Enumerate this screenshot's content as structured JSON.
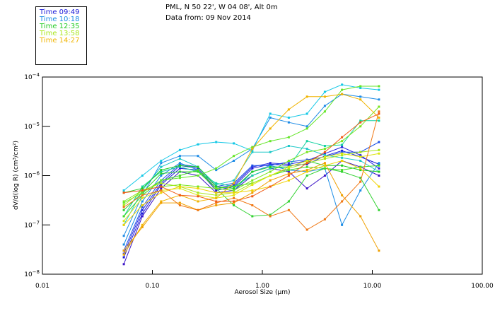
{
  "header": {
    "location": "PML, N 50 22', W 04 08', Alt 0m",
    "date": "Data from: 09 Nov 2014"
  },
  "legend": [
    {
      "label": "Time 09:49",
      "color": "#1a1ad8"
    },
    {
      "label": "Time 10:18",
      "color": "#1a8ce6"
    },
    {
      "label": "Time 12:35",
      "color": "#22cc22"
    },
    {
      "label": "Time 13:58",
      "color": "#a8e61a"
    },
    {
      "label": "Time 14:27",
      "color": "#f0b400"
    }
  ],
  "chart_data": {
    "type": "line",
    "title": "",
    "xlabel": "Aerosol Size (μm)",
    "ylabel": "dV/d(log R) (cm³/cm²)",
    "xscale": "log",
    "yscale": "log",
    "xlim": [
      0.01,
      100
    ],
    "ylim": [
      1e-08,
      0.0001
    ],
    "x_tick_labels": [
      "0.01",
      "0.10",
      "1.00",
      "10.00",
      "100.00"
    ],
    "y_tick_labels": [
      {
        "base": "10",
        "exp": "-4"
      },
      {
        "base": "10",
        "exp": "-5"
      },
      {
        "base": "10",
        "exp": "-6"
      },
      {
        "base": "10",
        "exp": "-7"
      },
      {
        "base": "10",
        "exp": "-8"
      }
    ],
    "grid": false,
    "legend_position": "top-left",
    "x": [
      0.055,
      0.081,
      0.12,
      0.178,
      0.26,
      0.38,
      0.55,
      0.81,
      1.18,
      1.74,
      2.55,
      3.7,
      5.3,
      7.8,
      11.5
    ],
    "series": [
      {
        "name": "s01",
        "color": "#3c14c8",
        "values": [
          1.6e-08,
          1.5e-07,
          5.5e-07,
          1.2e-06,
          1e-06,
          4.5e-07,
          5e-07,
          1e-06,
          1.4e-06,
          1.2e-06,
          5.5e-07,
          1e-06,
          2e-06,
          1.5e-06,
          1e-06
        ]
      },
      {
        "name": "s02",
        "color": "#1a1ad8",
        "values": [
          2.2e-08,
          1.7e-07,
          6.5e-07,
          1.4e-06,
          1.3e-06,
          5e-07,
          6e-07,
          1.4e-06,
          1.7e-06,
          1.6e-06,
          1.7e-06,
          2.5e-06,
          3.2e-06,
          2.4e-06,
          1.7e-06
        ]
      },
      {
        "name": "s03",
        "color": "#2828e0",
        "values": [
          2.6e-08,
          2e-07,
          7e-07,
          1.6e-06,
          1.4e-06,
          5.5e-07,
          6.5e-07,
          1.5e-06,
          1.8e-06,
          1.7e-06,
          2e-06,
          2.8e-06,
          3.8e-06,
          2.6e-06,
          1.4e-06
        ]
      },
      {
        "name": "s04",
        "color": "#1e50e6",
        "values": [
          3e-08,
          2.3e-07,
          8e-07,
          1.7e-06,
          1.5e-06,
          6e-07,
          7e-07,
          1.6e-06,
          1.6e-06,
          1.9e-06,
          2.1e-06,
          2.4e-06,
          3e-06,
          3e-06,
          4.8e-06
        ]
      },
      {
        "name": "s05",
        "color": "#1a8ce6",
        "values": [
          4e-08,
          3e-07,
          1e-06,
          1.8e-06,
          1.3e-06,
          5.5e-07,
          5e-07,
          1.2e-06,
          1.6e-06,
          1.3e-06,
          1.2e-06,
          1.4e-06,
          1e-07,
          5e-07,
          1.8e-06
        ]
      },
      {
        "name": "s06",
        "color": "#1e8ce6",
        "values": [
          6e-08,
          4e-07,
          1.8e-06,
          2.5e-06,
          2.5e-06,
          1.3e-06,
          2e-06,
          3.5e-06,
          1.5e-05,
          1.2e-05,
          1e-05,
          2.6e-05,
          4.5e-05,
          4e-05,
          3.5e-05
        ]
      },
      {
        "name": "s07",
        "color": "#14c8e6",
        "values": [
          5e-07,
          1e-06,
          2e-06,
          3.3e-06,
          4.3e-06,
          4.8e-06,
          4.5e-06,
          3.2e-06,
          1.8e-05,
          1.5e-05,
          1.8e-05,
          5e-05,
          7e-05,
          6e-05,
          5.5e-05
        ]
      },
      {
        "name": "s08",
        "color": "#1ec8c8",
        "values": [
          1e-07,
          5e-07,
          1.5e-06,
          2.2e-06,
          1.5e-06,
          6.5e-07,
          8e-07,
          3e-06,
          3e-06,
          4e-06,
          3.5e-06,
          2.6e-06,
          2.3e-06,
          2e-06,
          1.2e-06
        ]
      },
      {
        "name": "s09",
        "color": "#14d2a0",
        "values": [
          1.5e-07,
          6e-07,
          1.2e-06,
          1.5e-06,
          1.2e-06,
          7e-07,
          6e-07,
          1e-06,
          1.4e-06,
          1.5e-06,
          5e-06,
          4e-06,
          4.2e-06,
          1.3e-05,
          1.3e-05
        ]
      },
      {
        "name": "s10",
        "color": "#22cc22",
        "values": [
          4.5e-07,
          5.5e-07,
          1.3e-06,
          1.6e-06,
          1.5e-06,
          6e-07,
          5.5e-07,
          1.2e-06,
          1.5e-06,
          1.5e-06,
          2e-06,
          1.6e-06,
          1.6e-06,
          1.3e-06,
          1.2e-06
        ]
      },
      {
        "name": "s11",
        "color": "#32d232",
        "values": [
          2e-07,
          4.5e-07,
          1.1e-06,
          1.2e-06,
          1.2e-06,
          5.5e-07,
          2.5e-07,
          1.5e-07,
          1.6e-07,
          3e-07,
          1e-06,
          1.4e-06,
          1.2e-06,
          9e-07,
          2e-07
        ]
      },
      {
        "name": "s12",
        "color": "#46dc28",
        "values": [
          1.5e-07,
          4e-07,
          8e-07,
          1e-06,
          1.3e-06,
          5.5e-07,
          6e-07,
          7e-07,
          1e-06,
          1.3e-06,
          1.5e-06,
          1.4e-06,
          1.3e-06,
          1.5e-06,
          1.6e-06
        ]
      },
      {
        "name": "s13",
        "color": "#64e628",
        "values": [
          2.8e-07,
          4.5e-07,
          8e-07,
          9e-07,
          1e-06,
          1.4e-06,
          2.5e-06,
          3.8e-06,
          5e-06,
          6e-06,
          9e-06,
          2e-05,
          5.5e-05,
          6.5e-05,
          6.5e-05
        ]
      },
      {
        "name": "s14",
        "color": "#78e61e",
        "values": [
          3e-07,
          5e-07,
          6e-07,
          6.5e-07,
          6e-07,
          5.5e-07,
          5e-07,
          8e-07,
          1.2e-06,
          2e-06,
          3e-06,
          3.5e-06,
          5e-06,
          1e-05,
          2.5e-05
        ]
      },
      {
        "name": "s15",
        "color": "#a8e61a",
        "values": [
          2.5e-07,
          5e-07,
          7e-07,
          6e-07,
          4.5e-07,
          4e-07,
          4.5e-07,
          7e-07,
          1e-06,
          1.4e-06,
          1.8e-06,
          2.2e-06,
          2.6e-06,
          3e-06,
          3.3e-06
        ]
      },
      {
        "name": "s16",
        "color": "#dce614",
        "values": [
          1.2e-07,
          3.5e-07,
          5e-07,
          5.5e-07,
          4e-07,
          3.5e-07,
          4e-07,
          6.5e-07,
          1e-06,
          1.5e-06,
          2e-06,
          2.4e-06,
          2.8e-06,
          2.4e-06,
          2.8e-06
        ]
      },
      {
        "name": "s17",
        "color": "#f0d200",
        "values": [
          1e-07,
          2.5e-07,
          4.5e-07,
          6e-07,
          5.5e-07,
          4.5e-07,
          4.5e-07,
          5e-07,
          6e-07,
          8e-07,
          1.2e-06,
          1.6e-06,
          2e-06,
          1.4e-06,
          6e-07
        ]
      },
      {
        "name": "s18",
        "color": "#f0b400",
        "values": [
          2.5e-08,
          1e-07,
          3e-07,
          4e-07,
          3e-07,
          3.5e-07,
          7e-07,
          3.5e-06,
          9e-06,
          2.2e-05,
          4e-05,
          4e-05,
          4.5e-05,
          3.5e-05,
          1.5e-05
        ]
      },
      {
        "name": "s19",
        "color": "#f0a000",
        "values": [
          3e-08,
          9e-08,
          2.8e-07,
          2.8e-07,
          2e-07,
          2.5e-07,
          2.8e-07,
          4.5e-07,
          8e-07,
          1.1e-06,
          1.3e-06,
          1.8e-06,
          4e-07,
          1.5e-07,
          3e-08
        ]
      },
      {
        "name": "s20",
        "color": "#f07814",
        "values": [
          2.3e-07,
          4e-07,
          5e-07,
          2.5e-07,
          2e-07,
          2.8e-07,
          3.5e-07,
          2.5e-07,
          1.5e-07,
          2e-07,
          8e-08,
          1.3e-07,
          3e-07,
          7.5e-07,
          2e-05
        ]
      },
      {
        "name": "s21",
        "color": "#f05a14",
        "values": [
          4.5e-07,
          5e-07,
          6e-07,
          4e-07,
          3.8e-07,
          3e-07,
          3e-07,
          3.8e-07,
          6e-07,
          1e-06,
          1.8e-06,
          3e-06,
          6e-06,
          1.2e-05,
          1.8e-05
        ]
      }
    ]
  }
}
